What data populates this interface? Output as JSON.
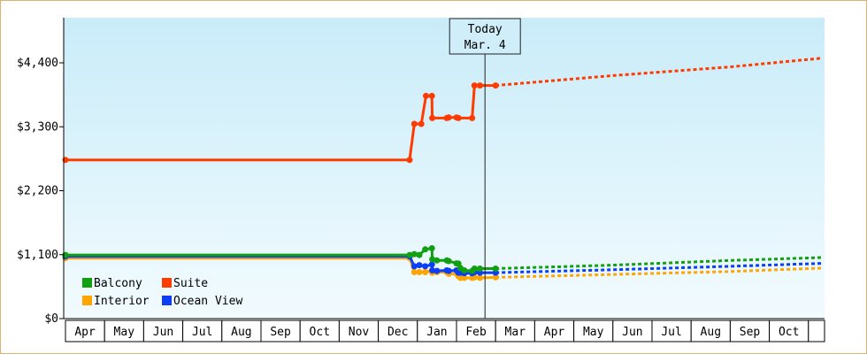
{
  "chart_data": {
    "type": "line",
    "title": "",
    "xlabel": "",
    "ylabel": "",
    "ylim": [
      0,
      4400
    ],
    "y_ticks": [
      {
        "value": 0,
        "label": "$0"
      },
      {
        "value": 1100,
        "label": "$1,100"
      },
      {
        "value": 2200,
        "label": "$2,200"
      },
      {
        "value": 3300,
        "label": "$3,300"
      },
      {
        "value": 4400,
        "label": "$4,400"
      }
    ],
    "x_months": [
      "Apr",
      "May",
      "Jun",
      "Jul",
      "Aug",
      "Sep",
      "Oct",
      "Nov",
      "Dec",
      "Jan",
      "Feb",
      "Mar",
      "Apr",
      "May",
      "Jun",
      "Jul",
      "Aug",
      "Sep",
      "Oct"
    ],
    "today_marker": {
      "line1": "Today",
      "line2": "Mar. 4",
      "x": 11.0
    },
    "grid": false,
    "legend_position": "bottom-left",
    "colors": {
      "background_top": "#c9ecf9",
      "background_bottom": "#f2fbfe",
      "frame": "#e0b070",
      "Balcony": "#11a011",
      "Suite": "#ff3c00",
      "Interior": "#ffa500",
      "Ocean View": "#0b3ef5"
    },
    "series": [
      {
        "name": "Suite",
        "color": "#ff3c00",
        "historical": [
          [
            0.0,
            2730
          ],
          [
            8.8,
            2730
          ],
          [
            8.92,
            3350
          ],
          [
            9.1,
            3350
          ],
          [
            9.22,
            3830
          ],
          [
            9.37,
            3830
          ],
          [
            9.38,
            3450
          ],
          [
            9.75,
            3450
          ],
          [
            9.8,
            3460
          ],
          [
            10.0,
            3460
          ],
          [
            10.05,
            3450
          ],
          [
            10.4,
            3450
          ],
          [
            10.46,
            4010
          ],
          [
            10.6,
            4010
          ],
          [
            11.0,
            4010
          ]
        ],
        "projected": [
          [
            11.0,
            4010
          ],
          [
            14.0,
            4180
          ],
          [
            17.0,
            4330
          ],
          [
            19.35,
            4480
          ]
        ]
      },
      {
        "name": "Balcony",
        "color": "#11a011",
        "historical": [
          [
            0.0,
            1095
          ],
          [
            8.8,
            1095
          ],
          [
            8.92,
            1110
          ],
          [
            9.05,
            1095
          ],
          [
            9.2,
            1190
          ],
          [
            9.37,
            1210
          ],
          [
            9.38,
            1020
          ],
          [
            9.5,
            1000
          ],
          [
            9.75,
            1000
          ],
          [
            9.8,
            990
          ],
          [
            10.0,
            950
          ],
          [
            10.05,
            945
          ],
          [
            10.1,
            870
          ],
          [
            10.2,
            830
          ],
          [
            10.4,
            820
          ],
          [
            10.46,
            860
          ],
          [
            10.6,
            860
          ],
          [
            11.0,
            860
          ]
        ],
        "projected": [
          [
            11.0,
            860
          ],
          [
            14.0,
            920
          ],
          [
            17.0,
            1000
          ],
          [
            19.35,
            1050
          ]
        ]
      },
      {
        "name": "Ocean View",
        "color": "#0b3ef5",
        "historical": [
          [
            0.0,
            1070
          ],
          [
            8.8,
            1070
          ],
          [
            8.92,
            900
          ],
          [
            9.05,
            920
          ],
          [
            9.2,
            900
          ],
          [
            9.37,
            930
          ],
          [
            9.38,
            830
          ],
          [
            9.5,
            820
          ],
          [
            9.75,
            830
          ],
          [
            9.8,
            820
          ],
          [
            10.0,
            830
          ],
          [
            10.05,
            790
          ],
          [
            10.1,
            790
          ],
          [
            10.2,
            780
          ],
          [
            10.4,
            780
          ],
          [
            10.46,
            800
          ],
          [
            10.6,
            790
          ],
          [
            11.0,
            790
          ]
        ],
        "projected": [
          [
            11.0,
            790
          ],
          [
            14.0,
            840
          ],
          [
            17.0,
            900
          ],
          [
            19.35,
            950
          ]
        ]
      },
      {
        "name": "Interior",
        "color": "#ffa500",
        "historical": [
          [
            0.0,
            1040
          ],
          [
            8.8,
            1040
          ],
          [
            8.92,
            800
          ],
          [
            9.05,
            800
          ],
          [
            9.2,
            800
          ],
          [
            9.37,
            830
          ],
          [
            9.38,
            790
          ],
          [
            9.5,
            800
          ],
          [
            9.75,
            800
          ],
          [
            9.8,
            770
          ],
          [
            10.0,
            770
          ],
          [
            10.05,
            730
          ],
          [
            10.1,
            700
          ],
          [
            10.2,
            700
          ],
          [
            10.4,
            700
          ],
          [
            10.46,
            710
          ],
          [
            10.6,
            700
          ],
          [
            11.0,
            710
          ]
        ],
        "projected": [
          [
            11.0,
            710
          ],
          [
            14.0,
            760
          ],
          [
            17.0,
            810
          ],
          [
            19.35,
            870
          ]
        ]
      }
    ],
    "legend": [
      {
        "label": "Balcony",
        "color": "#11a011"
      },
      {
        "label": "Suite",
        "color": "#ff3c00"
      },
      {
        "label": "Interior",
        "color": "#ffa500"
      },
      {
        "label": "Ocean View",
        "color": "#0b3ef5"
      }
    ]
  }
}
